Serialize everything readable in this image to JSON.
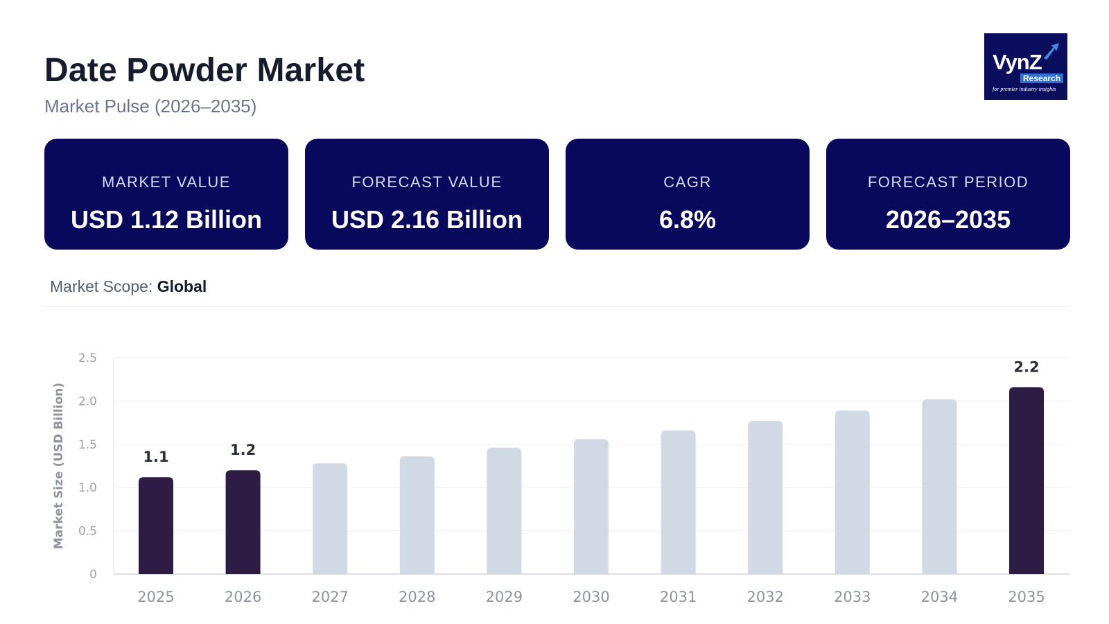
{
  "header": {
    "title": "Date Powder Market",
    "subtitle": "Market Pulse (2026–2035)"
  },
  "logo": {
    "main": "VynZ",
    "sub": "Research",
    "tagline": "for premier industry insights"
  },
  "cards": [
    {
      "label": "MARKET VALUE",
      "value": "USD 1.12 Billion"
    },
    {
      "label": "FORECAST VALUE",
      "value": "USD 2.16 Billion"
    },
    {
      "label": "CAGR",
      "value": "6.8%"
    },
    {
      "label": "FORECAST PERIOD",
      "value": "2026–2035"
    }
  ],
  "scope": {
    "label": "Market Scope:",
    "value": "Global"
  },
  "colors": {
    "card_bg": "#08095c",
    "bar_highlight": "#2d1d45",
    "bar_muted": "#d0d9e4",
    "logo_bg": "#0b0e5c"
  },
  "chart_data": {
    "type": "bar",
    "categories": [
      "2025",
      "2026",
      "2027",
      "2028",
      "2029",
      "2030",
      "2031",
      "2032",
      "2033",
      "2034",
      "2035"
    ],
    "values": [
      1.12,
      1.2,
      1.28,
      1.36,
      1.46,
      1.56,
      1.66,
      1.77,
      1.89,
      2.02,
      2.16
    ],
    "highlighted": [
      true,
      true,
      false,
      false,
      false,
      false,
      false,
      false,
      false,
      false,
      true
    ],
    "data_labels": [
      "1.1",
      "1.2",
      "",
      "",
      "",
      "",
      "",
      "",
      "",
      "",
      "2.2"
    ],
    "title": "",
    "xlabel": "",
    "ylabel": "Market Size (USD Billion)",
    "ylim": [
      0,
      2.5
    ],
    "yticks": [
      0,
      0.5,
      1.0,
      1.5,
      2.0,
      2.5
    ],
    "ytick_labels": [
      "0",
      "0.5",
      "1.0",
      "1.5",
      "2.0",
      "2.5"
    ],
    "grid": true,
    "legend": "none"
  }
}
